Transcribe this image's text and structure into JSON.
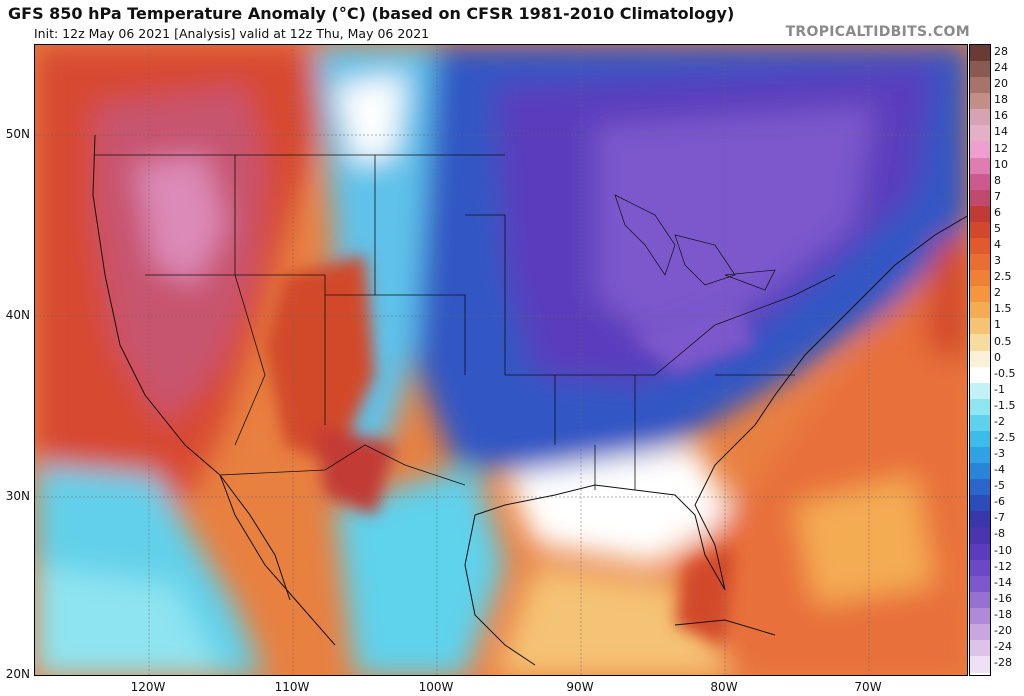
{
  "title": "GFS 850 hPa Temperature Anomaly (°C) (based on CFSR 1981-2010 Climatology)",
  "subtitle": "Init: 12z May 06 2021   [Analysis]   valid at 12z Thu, May 06 2021",
  "watermark": "TROPICALTIDBITS.COM",
  "lat_labels": [
    "50N",
    "40N",
    "30N",
    "20N"
  ],
  "lon_labels": [
    "120W",
    "110W",
    "100W",
    "90W",
    "80W",
    "70W"
  ],
  "colorbar": {
    "labels": [
      "28",
      "24",
      "20",
      "18",
      "16",
      "14",
      "12",
      "10",
      "8",
      "7",
      "6",
      "5",
      "4",
      "3",
      "2.5",
      "2",
      "1.5",
      "1",
      "0.5",
      "0",
      "-0.5",
      "-1",
      "-1.5",
      "-2",
      "-2.5",
      "-3",
      "-4",
      "-5",
      "-6",
      "-7",
      "-8",
      "-10",
      "-12",
      "-14",
      "-16",
      "-18",
      "-20",
      "-24",
      "-28"
    ],
    "colors": [
      "#6b3a34",
      "#8a5a52",
      "#a8746a",
      "#c28e86",
      "#d6a2b4",
      "#e3b0c8",
      "#ee9ecf",
      "#df7db3",
      "#cc5a8e",
      "#c04a6e",
      "#c23a36",
      "#d2482c",
      "#e05a2e",
      "#e86e34",
      "#ef8038",
      "#f3963f",
      "#f4ac52",
      "#f5c374",
      "#f7dca0",
      "#fbf1d6",
      "#ffffff",
      "#c2f2f6",
      "#8ee6f0",
      "#5ed2ec",
      "#3cbce8",
      "#2ea2e2",
      "#2a84d8",
      "#2a66cc",
      "#2c4cbc",
      "#3838ac",
      "#4a34b0",
      "#5a3cbc",
      "#6a48c6",
      "#7c58cc",
      "#9670d2",
      "#b08ad8",
      "#c8a6e0",
      "#ddc2ea",
      "#f0e0f4"
    ]
  },
  "map_legend": "850 hPa temperature anomaly shading over North America"
}
